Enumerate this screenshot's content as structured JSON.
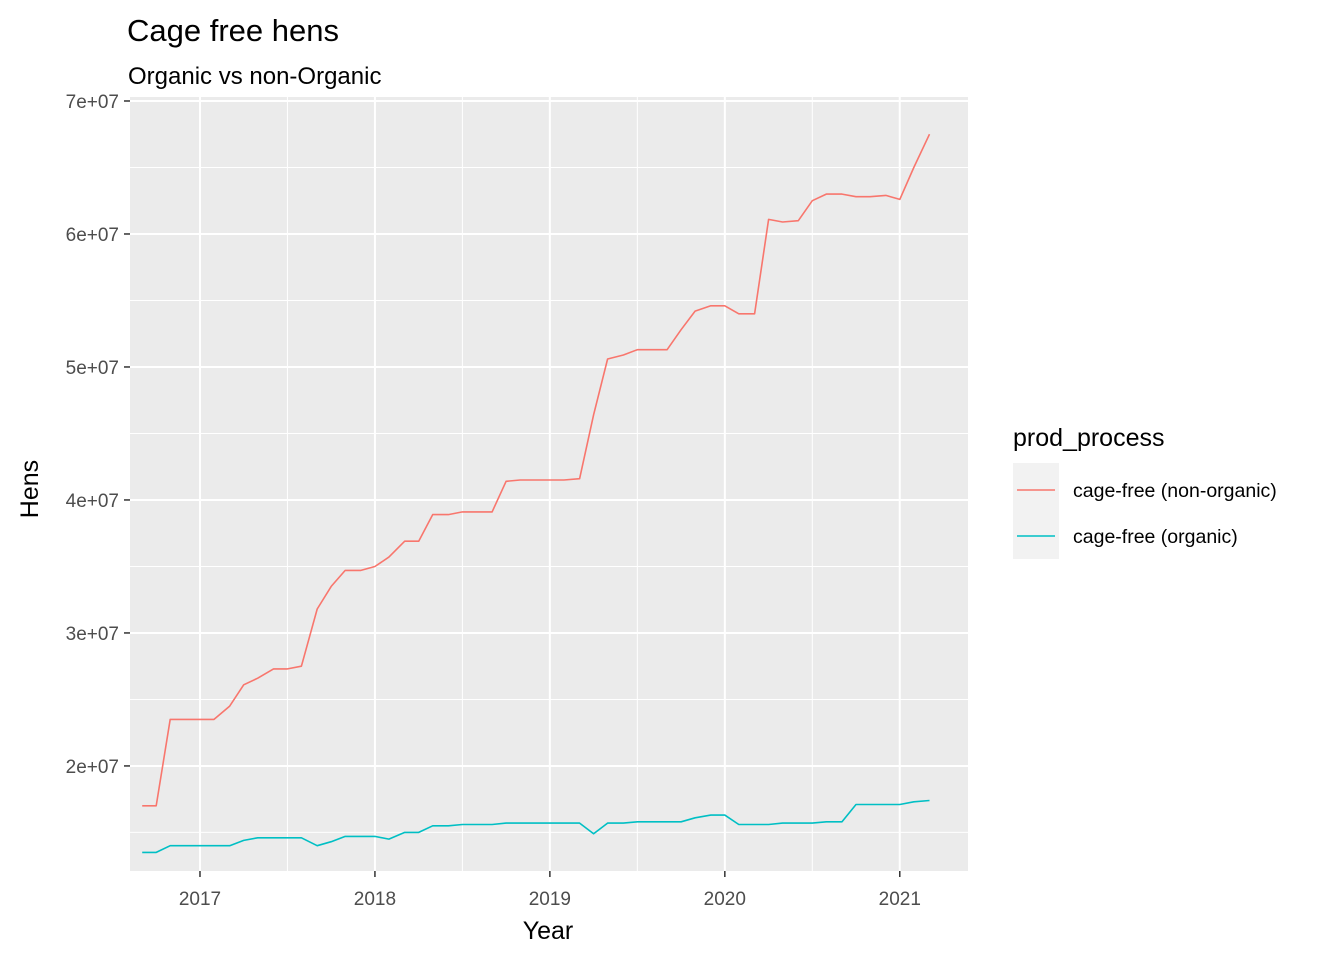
{
  "chart_data": {
    "type": "line",
    "title": "Cage free hens",
    "subtitle": "Organic vs non-Organic",
    "xlabel": "Year",
    "ylabel": "Hens",
    "x_ticks": [
      "2017",
      "2018",
      "2019",
      "2020",
      "2021"
    ],
    "y_ticks": [
      "2e+07",
      "3e+07",
      "4e+07",
      "5e+07",
      "6e+07",
      "7e+07"
    ],
    "y_tick_values": [
      20000000,
      30000000,
      40000000,
      50000000,
      60000000,
      70000000
    ],
    "xlim": [
      2016.6,
      2021.39
    ],
    "ylim": [
      12100000,
      70300000
    ],
    "grid": true,
    "legend": {
      "title": "prod_process",
      "position": "right"
    },
    "series": [
      {
        "name": "cage-free (non-organic)",
        "color": "#F8766D",
        "x": [
          2016.67,
          2016.75,
          2016.83,
          2016.92,
          2017.0,
          2017.08,
          2017.17,
          2017.25,
          2017.33,
          2017.42,
          2017.5,
          2017.58,
          2017.67,
          2017.75,
          2017.83,
          2017.92,
          2018.0,
          2018.08,
          2018.17,
          2018.25,
          2018.33,
          2018.42,
          2018.5,
          2018.58,
          2018.67,
          2018.75,
          2018.83,
          2018.92,
          2019.0,
          2019.08,
          2019.17,
          2019.25,
          2019.33,
          2019.42,
          2019.5,
          2019.58,
          2019.67,
          2019.75,
          2019.83,
          2019.92,
          2020.0,
          2020.08,
          2020.17,
          2020.25,
          2020.33,
          2020.42,
          2020.5,
          2020.58,
          2020.67,
          2020.75,
          2020.83,
          2020.92,
          2021.0,
          2021.08,
          2021.17
        ],
        "values": [
          17000000,
          17000000,
          23500000,
          23500000,
          23500000,
          23500000,
          24500000,
          26100000,
          26600000,
          27300000,
          27300000,
          27500000,
          31800000,
          33500000,
          34700000,
          34700000,
          35000000,
          35700000,
          36900000,
          36900000,
          38900000,
          38900000,
          39100000,
          39100000,
          39100000,
          41400000,
          41500000,
          41500000,
          41500000,
          41500000,
          41600000,
          46400000,
          50600000,
          50900000,
          51300000,
          51300000,
          51300000,
          52800000,
          54200000,
          54600000,
          54600000,
          54000000,
          54000000,
          61100000,
          60900000,
          61000000,
          62500000,
          63000000,
          63000000,
          62800000,
          62800000,
          62900000,
          62600000,
          65000000,
          67500000
        ]
      },
      {
        "name": "cage-free (organic)",
        "color": "#00BFC4",
        "x": [
          2016.67,
          2016.75,
          2016.83,
          2016.92,
          2017.0,
          2017.08,
          2017.17,
          2017.25,
          2017.33,
          2017.42,
          2017.5,
          2017.58,
          2017.67,
          2017.75,
          2017.83,
          2017.92,
          2018.0,
          2018.08,
          2018.17,
          2018.25,
          2018.33,
          2018.42,
          2018.5,
          2018.58,
          2018.67,
          2018.75,
          2018.83,
          2018.92,
          2019.0,
          2019.08,
          2019.17,
          2019.25,
          2019.33,
          2019.42,
          2019.5,
          2019.58,
          2019.67,
          2019.75,
          2019.83,
          2019.92,
          2020.0,
          2020.08,
          2020.17,
          2020.25,
          2020.33,
          2020.42,
          2020.5,
          2020.58,
          2020.67,
          2020.75,
          2020.83,
          2020.92,
          2021.0,
          2021.08,
          2021.17
        ],
        "values": [
          13500000,
          13500000,
          14000000,
          14000000,
          14000000,
          14000000,
          14000000,
          14400000,
          14600000,
          14600000,
          14600000,
          14600000,
          14000000,
          14300000,
          14700000,
          14700000,
          14700000,
          14500000,
          15000000,
          15000000,
          15500000,
          15500000,
          15600000,
          15600000,
          15600000,
          15700000,
          15700000,
          15700000,
          15700000,
          15700000,
          15700000,
          14900000,
          15700000,
          15700000,
          15800000,
          15800000,
          15800000,
          15800000,
          16100000,
          16300000,
          16300000,
          15600000,
          15600000,
          15600000,
          15700000,
          15700000,
          15700000,
          15800000,
          15800000,
          17100000,
          17100000,
          17100000,
          17100000,
          17300000,
          17400000
        ]
      }
    ]
  }
}
